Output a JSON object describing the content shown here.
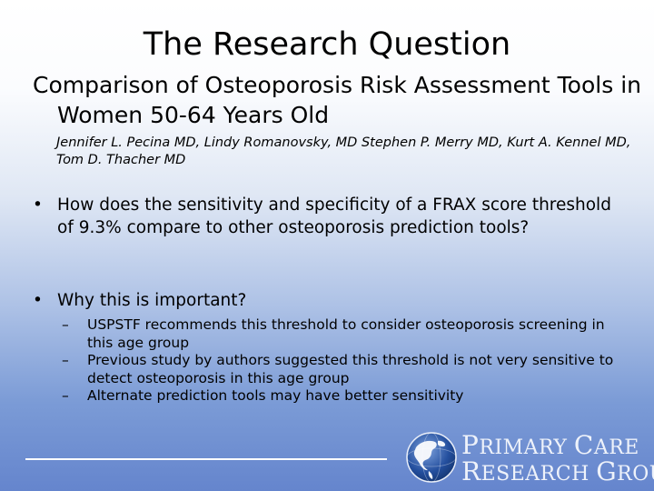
{
  "slide": {
    "title": "The Research Question",
    "subtitle": "Comparison of Osteoporosis Risk Assessment Tools in Women 50-64 Years Old",
    "authors": "Jennifer L. Pecina MD, Lindy Romanovsky, MD Stephen P. Merry MD, Kurt A. Kennel MD, Tom D. Thacher MD",
    "bullets": [
      "How does the sensitivity and specificity of a FRAX score threshold of 9.3% compare to other osteoporosis prediction tools?",
      "Why this is important?"
    ],
    "sub_bullets": [
      "USPSTF recommends this threshold to consider osteoporosis screening in this age group",
      "Previous study by authors suggested this threshold is not very sensitive to detect osteoporosis in this age group",
      "Alternate prediction tools may have better sensitivity"
    ],
    "bullet_symbol": "•",
    "dash_symbol": "–"
  },
  "logo": {
    "line1_initial": "P",
    "line1_rest": "RIMARY ",
    "line1_initial2": "C",
    "line1_rest2": "ARE",
    "line2_initial": "R",
    "line2_rest": "ESEARCH ",
    "line2_initial2": "G",
    "line2_rest2": "ROUP"
  },
  "colors": {
    "gradient_top": "#ffffff",
    "gradient_bottom": "#6585cd",
    "logo_text": "#eef2fa"
  }
}
